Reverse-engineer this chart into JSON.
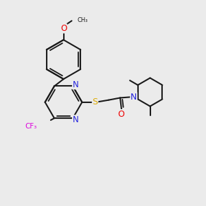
{
  "bg_color": "#ebebeb",
  "bond_color": "#1a1a1a",
  "atom_colors": {
    "N": "#2222dd",
    "O": "#ee0000",
    "S": "#ddaa00",
    "F": "#dd00dd",
    "C": "#1a1a1a"
  },
  "bond_lw": 1.5,
  "font_size": 7.5,
  "xlim": [
    -2.0,
    5.5
  ],
  "ylim": [
    -1.5,
    6.0
  ]
}
